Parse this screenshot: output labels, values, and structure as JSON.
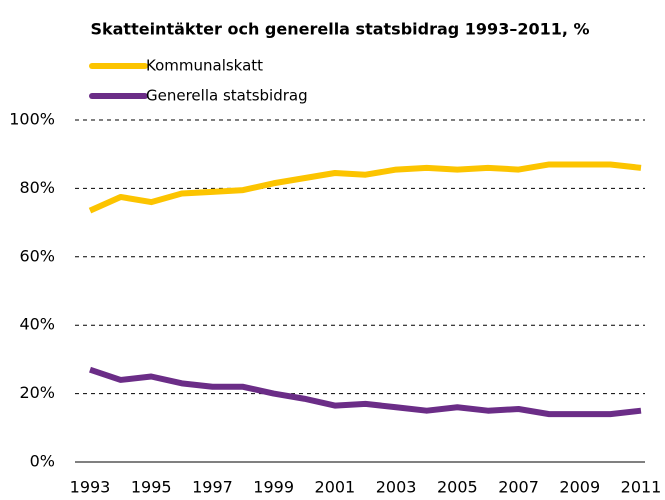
{
  "chart_data": {
    "type": "line",
    "title": "Skatteintäkter och generella statsbidrag 1993–2011, %",
    "x": [
      1993,
      1994,
      1995,
      1996,
      1997,
      1998,
      1999,
      2000,
      2001,
      2002,
      2003,
      2004,
      2005,
      2006,
      2007,
      2008,
      2009,
      2010,
      2011
    ],
    "series": [
      {
        "name": "Kommunalskatt",
        "color": "#fcc400",
        "values": [
          73.5,
          77.5,
          76,
          78.5,
          79,
          79.5,
          81.5,
          83,
          84.5,
          84,
          85.5,
          86,
          85.5,
          86,
          85.5,
          87,
          87,
          87,
          86
        ]
      },
      {
        "name": "Generella statsbidrag",
        "color": "#6b2d87",
        "values": [
          27,
          24,
          25,
          23,
          22,
          22,
          20,
          18.5,
          16.5,
          17,
          16,
          15,
          16,
          15,
          15.5,
          14,
          14,
          14,
          15
        ]
      }
    ],
    "xlim": [
      1993,
      2011
    ],
    "xticks": [
      1993,
      1995,
      1997,
      1999,
      2001,
      2003,
      2005,
      2007,
      2009,
      2011
    ],
    "ylim": [
      0,
      100
    ],
    "yticks": [
      {
        "value": 0,
        "label": "0%"
      },
      {
        "value": 20,
        "label": "20%"
      },
      {
        "value": 40,
        "label": "40%"
      },
      {
        "value": 60,
        "label": "60%"
      },
      {
        "value": 80,
        "label": "80%"
      },
      {
        "value": 100,
        "label": "100%"
      }
    ],
    "grid": true,
    "legend": "top-left"
  }
}
